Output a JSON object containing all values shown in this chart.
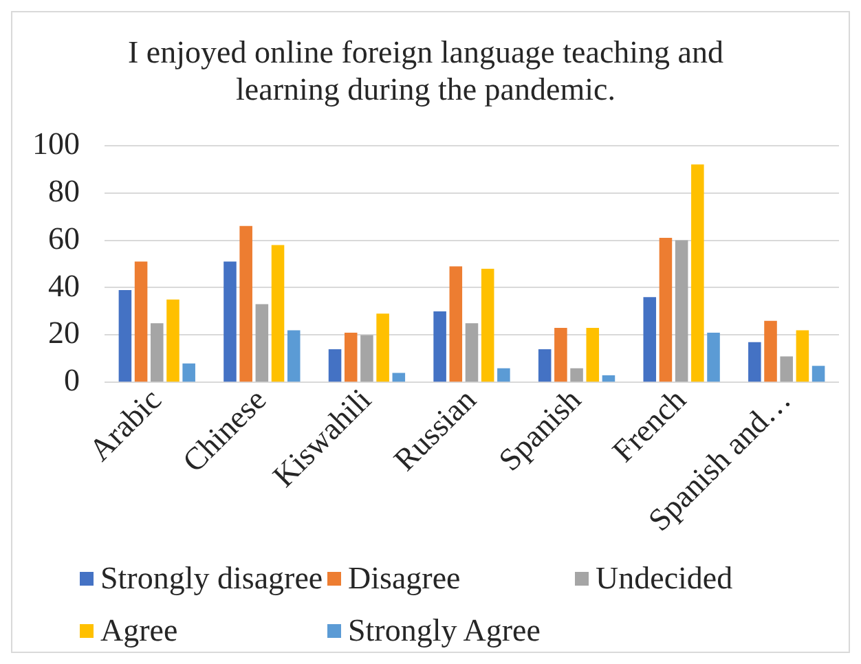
{
  "chart_data": {
    "type": "bar",
    "title": "I enjoyed online foreign language teaching and learning during the pandemic.",
    "categories": [
      "Arabic",
      "Chinese",
      "Kiswahili",
      "Russian",
      "Spanish",
      "French",
      "Spanish and…"
    ],
    "series": [
      {
        "name": "Strongly disagree",
        "color": "#4472c4",
        "values": [
          39,
          51,
          14,
          30,
          14,
          36,
          17
        ]
      },
      {
        "name": "Disagree",
        "color": "#ed7d31",
        "values": [
          51,
          66,
          21,
          49,
          23,
          61,
          26
        ]
      },
      {
        "name": "Undecided",
        "color": "#a5a5a5",
        "values": [
          25,
          33,
          20,
          25,
          6,
          60,
          11
        ]
      },
      {
        "name": "Agree",
        "color": "#ffc000",
        "values": [
          35,
          58,
          29,
          48,
          23,
          92,
          22
        ]
      },
      {
        "name": "Strongly Agree",
        "color": "#5b9bd5",
        "values": [
          8,
          22,
          4,
          6,
          3,
          21,
          7
        ]
      }
    ],
    "ylim": [
      0,
      100
    ],
    "yticks": [
      0,
      20,
      40,
      60,
      80,
      100
    ],
    "grid": "y",
    "legend": "bottom"
  }
}
